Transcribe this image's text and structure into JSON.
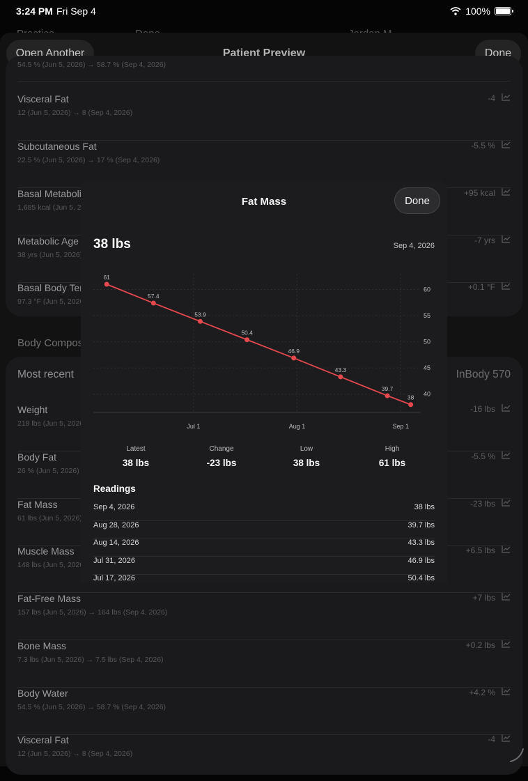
{
  "status_bar": {
    "time": "3:24 PM",
    "date": "Fri Sep 4",
    "battery": "100%"
  },
  "background_top": {
    "left_label": "Practice",
    "done": "Done",
    "right_label": "Jordan M"
  },
  "sheet": {
    "title": "Patient Preview",
    "open_another_label": "Open Another",
    "done_label": "Done",
    "cut_row_sub": "54.5 % (Jun 5, 2026) → 58.7 % (Sep 4, 2026)"
  },
  "card_top_rows": [
    {
      "title": "Visceral Fat",
      "sub": "12 (Jun 5, 2026) → 8 (Sep 4, 2026)",
      "delta": "-4"
    },
    {
      "title": "Subcutaneous Fat",
      "sub": "22.5 % (Jun 5, 2026) → 17 % (Sep 4, 2026)",
      "delta": "-5.5 %"
    },
    {
      "title": "Basal Metabolic Rate",
      "sub": "1,685 kcal (Jun 5, 2026)",
      "delta": "+95 kcal"
    },
    {
      "title": "Metabolic Age",
      "sub": "38 yrs (Jun 5, 2026)",
      "delta": "-7 yrs"
    },
    {
      "title": "Basal Body Temperature",
      "sub": "97.3 °F (Jun 5, 2026)",
      "delta": "+0.1 °F"
    }
  ],
  "section_title": "Body Composition",
  "most_recent": {
    "label": "Most recent",
    "source": "InBody 570"
  },
  "card_bottom_rows": [
    {
      "title": "Weight",
      "sub": "218 lbs (Jun 5, 2026)",
      "delta": "-16 lbs"
    },
    {
      "title": "Body Fat",
      "sub": "26 % (Jun 5, 2026)",
      "delta": "-5.5 %"
    },
    {
      "title": "Fat Mass",
      "sub": "61 lbs (Jun 5, 2026)",
      "delta": "-23 lbs"
    },
    {
      "title": "Muscle Mass",
      "sub": "148 lbs (Jun 5, 2026)",
      "delta": "+6.5 lbs"
    },
    {
      "title": "Fat-Free Mass",
      "sub": "157 lbs (Jun 5, 2026) → 164 lbs (Sep 4, 2026)",
      "delta": "+7 lbs"
    },
    {
      "title": "Bone Mass",
      "sub": "7.3 lbs (Jun 5, 2026) → 7.5 lbs (Sep 4, 2026)",
      "delta": "+0.2 lbs"
    },
    {
      "title": "Body Water",
      "sub": "54.5 % (Jun 5, 2026) → 58.7 % (Sep 4, 2026)",
      "delta": "+4.2 %"
    },
    {
      "title": "Visceral Fat",
      "sub": "12 (Jun 5, 2026) → 8 (Sep 4, 2026)",
      "delta": "-4"
    }
  ],
  "modal": {
    "title": "Fat Mass",
    "done_label": "Done",
    "current_value": "38 lbs",
    "current_date": "Sep 4, 2026",
    "stats": [
      {
        "label": "Latest",
        "value": "38 lbs"
      },
      {
        "label": "Change",
        "value": "-23 lbs"
      },
      {
        "label": "Low",
        "value": "38 lbs"
      },
      {
        "label": "High",
        "value": "61 lbs"
      }
    ],
    "readings_title": "Readings",
    "readings": [
      {
        "date": "Sep 4, 2026",
        "value": "38 lbs"
      },
      {
        "date": "Aug 28, 2026",
        "value": "39.7 lbs"
      },
      {
        "date": "Aug 14, 2026",
        "value": "43.3 lbs"
      },
      {
        "date": "Jul 31, 2026",
        "value": "46.9 lbs"
      },
      {
        "date": "Jul 17, 2026",
        "value": "50.4 lbs"
      }
    ]
  },
  "chart_data": {
    "type": "line",
    "x": [
      "2026-06-05",
      "2026-06-19",
      "2026-07-03",
      "2026-07-17",
      "2026-07-31",
      "2026-08-14",
      "2026-08-28",
      "2026-09-04"
    ],
    "series": [
      {
        "values": [
          61,
          57.4,
          53.9,
          50.4,
          46.9,
          43.3,
          39.7,
          38
        ]
      }
    ],
    "data_labels": [
      "61",
      "57.4",
      "53.9",
      "50.4",
      "46.9",
      "43.3",
      "39.7",
      "38"
    ],
    "x_tick_labels": [
      "Jul 1",
      "Aug 1",
      "Sep 1"
    ],
    "x_tick_dates": [
      "2026-07-01",
      "2026-08-01",
      "2026-09-01"
    ],
    "y_ticks": [
      40,
      45,
      50,
      55,
      60
    ],
    "ylim": [
      36.5,
      63
    ],
    "xlim": [
      "2026-06-01",
      "2026-09-07"
    ],
    "grid": true,
    "line_color": "#e5484d",
    "y_axis_position": "right"
  }
}
